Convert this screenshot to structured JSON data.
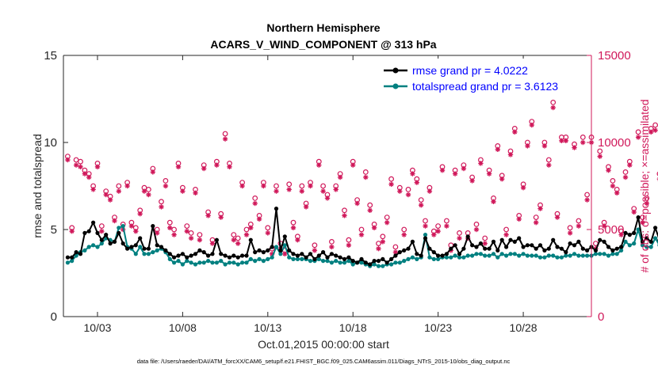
{
  "chart_data": {
    "type": "line",
    "title": "Northern Hemisphere",
    "subtitle": "ACARS_V_WIND_COMPONENT @ 313 hPa",
    "xlabel": "Oct.01,2015 00:00:00 start",
    "ylabel_left": "rmse and totalspread",
    "ylabel_right": "# of obs: o=possible; ×=assimilated",
    "footnote": "data file: /Users/raeder/DAI/ATM_forcXX/CAM6_setup/f.e21.FHIST_BGC.f09_025.CAM6assim.011/Diags_NTrS_2015-10/obs_diag_output.nc",
    "x_range_days": [
      1.0,
      32.0
    ],
    "ylim_left": [
      0,
      15
    ],
    "ylim_right": [
      0,
      15000
    ],
    "yticks_left": [
      0,
      5,
      10,
      15
    ],
    "yticks_right": [
      0,
      5000,
      10000,
      15000
    ],
    "x_ticks": [
      {
        "day": 3,
        "label": "10/03"
      },
      {
        "day": 8,
        "label": "10/08"
      },
      {
        "day": 13,
        "label": "10/13"
      },
      {
        "day": 18,
        "label": "10/18"
      },
      {
        "day": 23,
        "label": "10/23"
      },
      {
        "day": 28,
        "label": "10/28"
      }
    ],
    "step_days": 0.25,
    "x_start_day": 1.25,
    "colors": {
      "rmse": "#000000",
      "totalspread": "#008080",
      "obs": "#d0185a",
      "legend_text": "#0000ff"
    },
    "series": [
      {
        "name": "rmse grand pr = 4.0222",
        "values": [
          3.4,
          3.4,
          3.7,
          3.6,
          4.8,
          4.9,
          5.4,
          4.8,
          4.4,
          4.7,
          4.2,
          4.3,
          4.8,
          4.2,
          3.9,
          4.0,
          4.1,
          4.5,
          3.9,
          3.9,
          5.2,
          4.1,
          4.0,
          3.8,
          3.6,
          3.4,
          3.5,
          3.6,
          3.4,
          3.5,
          3.6,
          3.8,
          3.7,
          3.5,
          3.6,
          4.4,
          3.6,
          3.5,
          3.4,
          3.5,
          3.4,
          3.5,
          3.5,
          4.4,
          3.7,
          3.8,
          3.7,
          3.8,
          4.0,
          6.2,
          3.8,
          4.6,
          3.8,
          3.6,
          3.5,
          3.6,
          3.4,
          3.6,
          3.3,
          3.5,
          3.7,
          3.4,
          3.6,
          3.5,
          3.4,
          3.3,
          3.4,
          3.2,
          3.1,
          3.3,
          3.1,
          3.0,
          3.2,
          3.2,
          3.3,
          3.1,
          3.3,
          3.5,
          3.7,
          3.8,
          3.9,
          4.3,
          3.6,
          3.5,
          4.5,
          3.9,
          3.7,
          3.5,
          3.5,
          3.6,
          3.9,
          4.1,
          3.6,
          3.9,
          4.6,
          4.1,
          4.0,
          4.2,
          3.9,
          3.9,
          4.3,
          3.8,
          4.4,
          4.0,
          4.4,
          4.3,
          4.5,
          4.0,
          4.1,
          4.1,
          3.9,
          4.1,
          3.8,
          3.9,
          4.4,
          4.0,
          3.9,
          3.7,
          4.2,
          4.1,
          4.3,
          3.9,
          3.8,
          4.0,
          3.8,
          4.4,
          4.3,
          4.0,
          3.8,
          3.9,
          4.0,
          4.8,
          4.7,
          4.8,
          5.7,
          4.3,
          4.5,
          4.3,
          5.1,
          4.4,
          4.5,
          4.5
        ]
      },
      {
        "name": "totalspread grand pr = 3.6123",
        "values": [
          3.1,
          3.2,
          3.5,
          3.7,
          3.8,
          4.0,
          4.1,
          4.0,
          4.2,
          4.5,
          4.4,
          4.3,
          5.1,
          5.2,
          4.0,
          3.9,
          3.6,
          4.0,
          3.6,
          3.6,
          3.7,
          3.8,
          3.9,
          3.7,
          3.3,
          3.1,
          3.2,
          3.0,
          3.2,
          3.1,
          3.0,
          3.1,
          3.1,
          3.2,
          3.1,
          3.1,
          3.2,
          3.0,
          3.1,
          3.1,
          3.0,
          3.1,
          3.1,
          3.3,
          3.2,
          3.3,
          3.2,
          3.3,
          3.4,
          4.0,
          3.6,
          4.1,
          3.4,
          3.3,
          3.3,
          3.3,
          3.3,
          3.2,
          3.2,
          3.3,
          3.2,
          3.2,
          3.1,
          3.2,
          3.1,
          3.1,
          3.2,
          3.0,
          3.1,
          3.1,
          3.0,
          2.9,
          3.0,
          2.9,
          2.9,
          3.0,
          3.0,
          3.1,
          3.1,
          3.2,
          3.3,
          3.4,
          3.3,
          3.4,
          4.7,
          3.4,
          3.3,
          3.3,
          3.4,
          3.4,
          3.4,
          3.5,
          3.4,
          3.4,
          3.5,
          3.5,
          3.6,
          3.6,
          3.5,
          3.5,
          3.6,
          3.4,
          3.6,
          3.5,
          3.6,
          3.6,
          3.5,
          3.6,
          3.5,
          3.5,
          3.5,
          3.4,
          3.4,
          3.5,
          3.5,
          3.4,
          3.4,
          3.5,
          3.5,
          3.6,
          3.5,
          3.5,
          3.5,
          3.5,
          3.6,
          3.6,
          3.6,
          3.5,
          3.6,
          3.6,
          3.8,
          4.3,
          4.1,
          4.2,
          5.0,
          4.1,
          4.0,
          4.0,
          4.5,
          4.1,
          4.0,
          4.0
        ]
      }
    ],
    "obs_possible": [
      9200,
      5100,
      9000,
      8900,
      8400,
      8200,
      7500,
      8800,
      5200,
      7200,
      6900,
      5700,
      7500,
      5300,
      7700,
      5400,
      5100,
      6100,
      7400,
      7300,
      8500,
      5000,
      6600,
      7800,
      5400,
      5000,
      8800,
      7400,
      5200,
      4800,
      7300,
      4700,
      8700,
      6000,
      4400,
      8900,
      5900,
      10500,
      8800,
      4700,
      4500,
      7700,
      5000,
      5300,
      6800,
      5800,
      7700,
      5100,
      3900,
      7500,
      4200,
      3800,
      7600,
      5400,
      4600,
      7500,
      6500,
      7700,
      4100,
      8900,
      7500,
      7000,
      4300,
      7500,
      8200,
      6100,
      4400,
      8900,
      6700,
      5000,
      8300,
      6400,
      5300,
      4200,
      4600,
      5700,
      7900,
      4000,
      7400,
      5000,
      7300,
      8400,
      7900,
      6700,
      5500,
      7400,
      4900,
      5200,
      8600,
      5500,
      4100,
      8400,
      4800,
      8700,
      4800,
      8000,
      5300,
      9000,
      4500,
      8400,
      6800,
      9800,
      8100,
      5000,
      9500,
      10800,
      5800,
      7600,
      10000,
      11200,
      5700,
      6400,
      10000,
      9000,
      12300,
      5900,
      10300,
      10300,
      5100,
      9900,
      5500,
      10300,
      7000,
      10300,
      4200,
      9500,
      5400,
      8600,
      7800,
      7300,
      4900,
      8300,
      8900,
      6200,
      10600,
      5700,
      6800,
      10800,
      11000,
      8200,
      7300,
      10200,
      9000,
      8600,
      6200,
      4400
    ],
    "obs_assimilated": [
      9000,
      4900,
      8700,
      8600,
      8200,
      8000,
      7300,
      8600,
      4900,
      7000,
      6700,
      5500,
      7200,
      5000,
      7500,
      5200,
      4900,
      5900,
      7200,
      7000,
      8300,
      4800,
      6300,
      7500,
      5100,
      4700,
      8600,
      7200,
      4900,
      4500,
      7100,
      4400,
      8500,
      5800,
      4200,
      8700,
      5700,
      10200,
      8600,
      4400,
      4200,
      7500,
      4700,
      5100,
      6500,
      5600,
      7500,
      4800,
      3600,
      7200,
      3900,
      3600,
      7300,
      5100,
      4400,
      7200,
      6300,
      7500,
      3800,
      8700,
      7200,
      6800,
      4000,
      7300,
      8000,
      5800,
      4100,
      8700,
      6500,
      4700,
      8000,
      6100,
      5100,
      3900,
      4300,
      5400,
      7600,
      3700,
      7200,
      4700,
      7000,
      8200,
      7700,
      6400,
      5200,
      7200,
      4700,
      4900,
      8400,
      5200,
      3800,
      8200,
      4500,
      8500,
      4500,
      7800,
      5000,
      8800,
      4200,
      8200,
      6600,
      9600,
      7900,
      4700,
      9300,
      10600,
      5600,
      7400,
      9800,
      11000,
      5400,
      6200,
      9800,
      8700,
      12000,
      5700,
      10100,
      10100,
      4800,
      9700,
      5200,
      10000,
      6700,
      10000,
      3900,
      9200,
      5200,
      8400,
      7500,
      7100,
      4700,
      8000,
      8700,
      6000,
      10300,
      5400,
      6500,
      10600,
      10700,
      7900,
      7100,
      9900,
      8700,
      8300,
      0,
      0
    ]
  }
}
